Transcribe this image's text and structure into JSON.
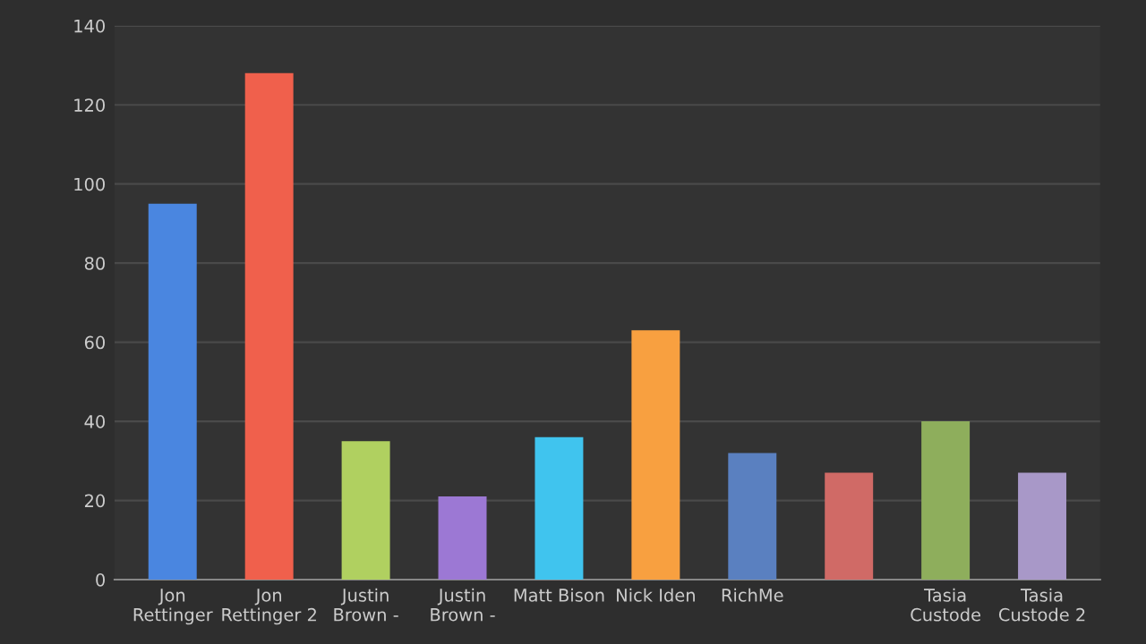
{
  "chart_data": {
    "type": "bar",
    "categories": [
      "Jon\nRettinger",
      "Jon\nRettinger 2",
      "Justin\nBrown -",
      "Justin\nBrown -",
      "Matt Bison",
      "Nick Iden",
      "RichMe",
      null,
      "Tasia\nCustode",
      "Tasia\nCustode 2"
    ],
    "values": [
      95,
      128,
      35,
      21,
      36,
      63,
      32,
      27,
      40,
      27
    ],
    "colors": [
      "#4a86e0",
      "#f0604c",
      "#b0d060",
      "#9c78d4",
      "#40c4ee",
      "#f8a040",
      "#5a80c0",
      "#d06a66",
      "#8eae5c",
      "#a898c8"
    ],
    "ylim": [
      0,
      140
    ],
    "yticks": [
      0,
      20,
      40,
      60,
      80,
      100,
      120,
      140
    ],
    "grid": "y",
    "legend": false
  }
}
